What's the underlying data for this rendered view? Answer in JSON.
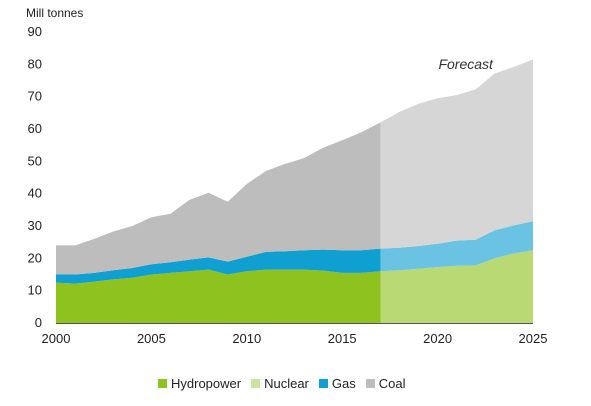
{
  "chart_data": {
    "type": "area",
    "ylabel": "Mill tonnes",
    "ylim": [
      0,
      90
    ],
    "yticks": [
      0,
      10,
      20,
      30,
      40,
      50,
      60,
      70,
      80,
      90
    ],
    "xlim": [
      2000,
      2025
    ],
    "xticks": [
      2000,
      2005,
      2010,
      2015,
      2020,
      2025
    ],
    "x": [
      2000,
      2001,
      2002,
      2003,
      2004,
      2005,
      2006,
      2007,
      2008,
      2009,
      2010,
      2011,
      2012,
      2013,
      2014,
      2015,
      2016,
      2017,
      2018,
      2019,
      2020,
      2021,
      2022,
      2023,
      2024,
      2025
    ],
    "stacked": true,
    "series": [
      {
        "name": "Hydropower",
        "color": "#8dc21f",
        "values": [
          12.5,
          12.2,
          12.8,
          13.5,
          14,
          15,
          15.5,
          16,
          16.5,
          15,
          16,
          16.5,
          16.5,
          16.5,
          16.2,
          15.5,
          15.5,
          16,
          16.3,
          16.8,
          17.3,
          17.7,
          17.8,
          20,
          21.5,
          22.5
        ]
      },
      {
        "name": "Nuclear",
        "color": "#cfe3a0",
        "values": [
          0,
          0,
          0,
          0,
          0,
          0,
          0,
          0,
          0,
          0,
          0,
          0,
          0,
          0,
          0,
          0,
          0,
          0,
          0,
          0,
          0,
          0,
          0,
          0,
          0,
          0
        ]
      },
      {
        "name": "Gas",
        "color": "#0f9fd1",
        "values": [
          2.5,
          2.8,
          2.7,
          2.8,
          3,
          3.2,
          3.3,
          3.6,
          3.8,
          4,
          4.5,
          5.5,
          5.7,
          6,
          6.5,
          7,
          7,
          7,
          7,
          7,
          7.2,
          7.8,
          8,
          8.7,
          8.7,
          9
        ]
      },
      {
        "name": "Coal",
        "color": "#bdbdbd",
        "values": [
          9,
          9,
          10.5,
          12,
          13,
          14.5,
          15,
          18.5,
          20,
          18.5,
          22.5,
          25,
          27,
          28.5,
          31.5,
          34,
          36.5,
          39,
          42,
          44,
          45,
          45,
          46.5,
          48.5,
          49,
          50
        ]
      }
    ],
    "forecast": {
      "label": "Forecast",
      "start": 2017,
      "end": 2025
    },
    "legend_position": "bottom",
    "grid": false
  }
}
